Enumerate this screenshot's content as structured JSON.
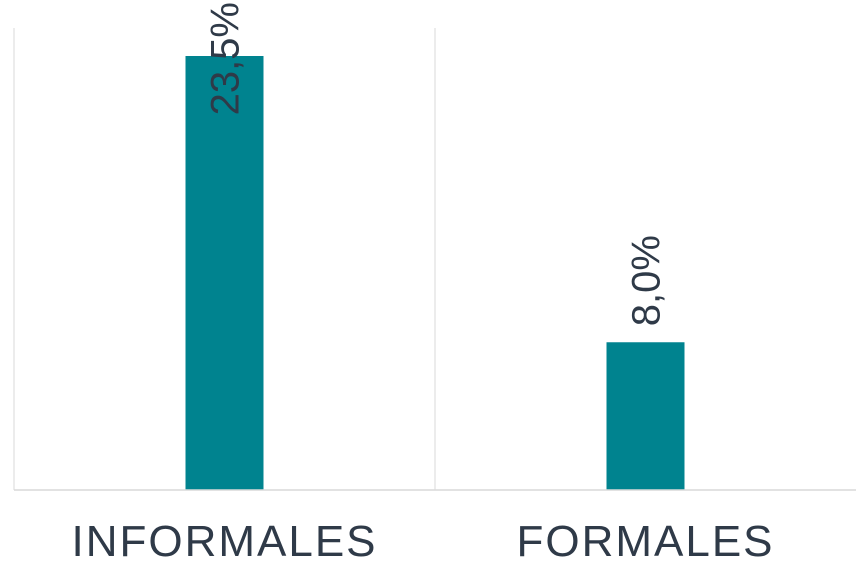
{
  "chart_data": {
    "type": "bar",
    "categories": [
      "INFORMALES",
      "FORMALES"
    ],
    "values": [
      23.5,
      8.0
    ],
    "value_labels": [
      "23,5%",
      "8,0%"
    ],
    "title": "",
    "xlabel": "",
    "ylabel": "",
    "ylim": [
      0,
      25
    ],
    "grid": "vertical category separators",
    "legend": "none",
    "colors": {
      "bar": "#00838f",
      "text": "#2f3a48",
      "grid": "#d9d9d9",
      "axis": "#d9d9d9"
    }
  }
}
